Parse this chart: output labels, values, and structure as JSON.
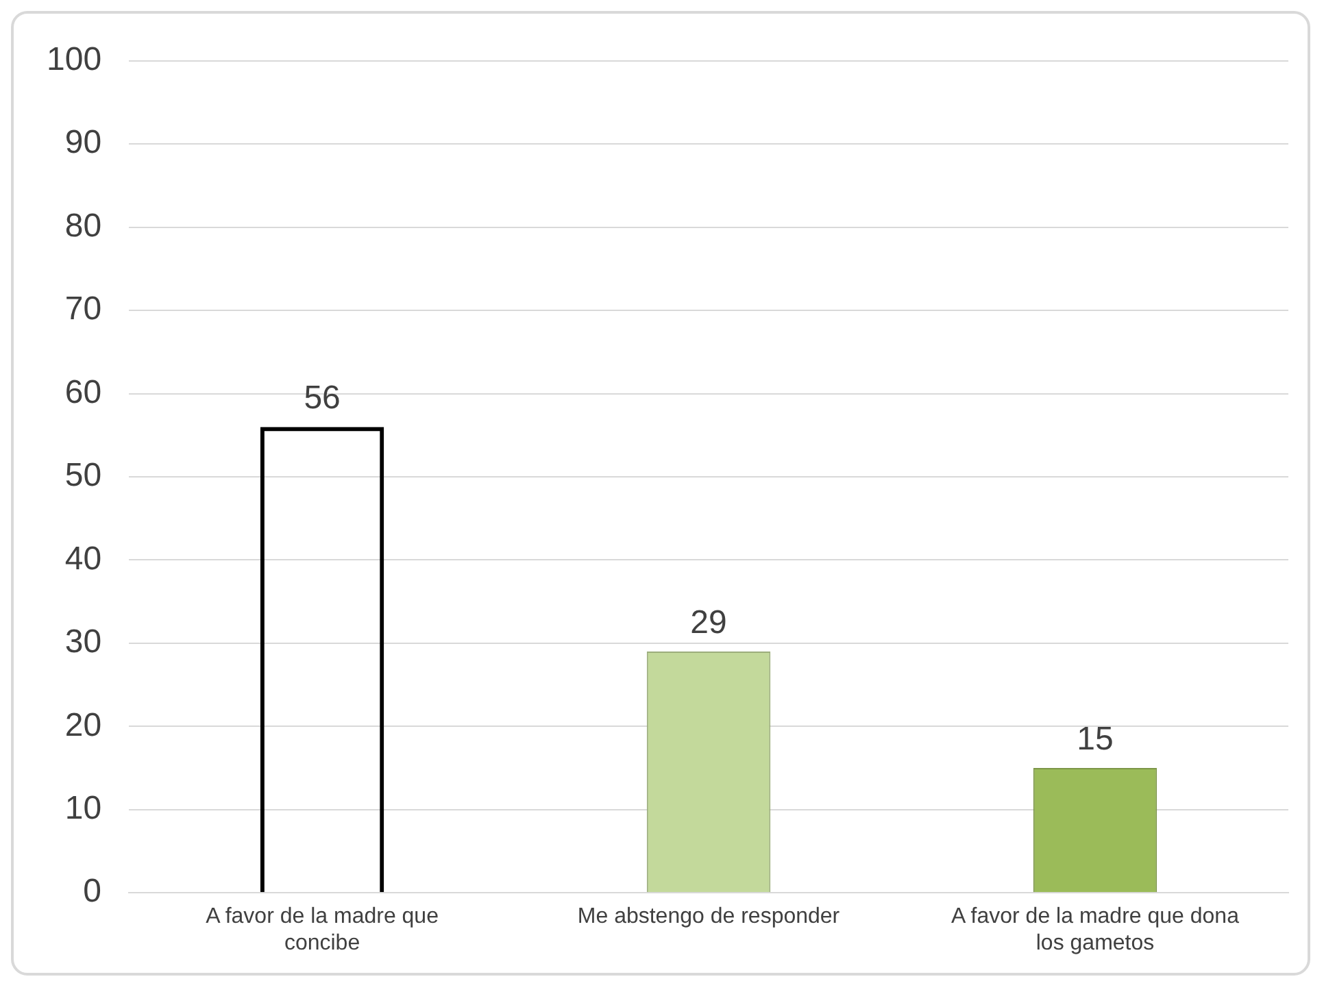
{
  "chart_data": {
    "type": "bar",
    "categories": [
      "A favor de la madre que concibe",
      "Me abstengo de responder",
      "A favor de la madre que dona los gametos"
    ],
    "values": [
      56,
      29,
      15
    ],
    "colors": [
      "#000000",
      "#c3d99b",
      "#9bbb59"
    ],
    "ylim": [
      0,
      100
    ],
    "yticks": [
      0,
      10,
      20,
      30,
      40,
      50,
      60,
      70,
      80,
      90,
      100
    ],
    "grid": "y",
    "data_labels": true
  }
}
